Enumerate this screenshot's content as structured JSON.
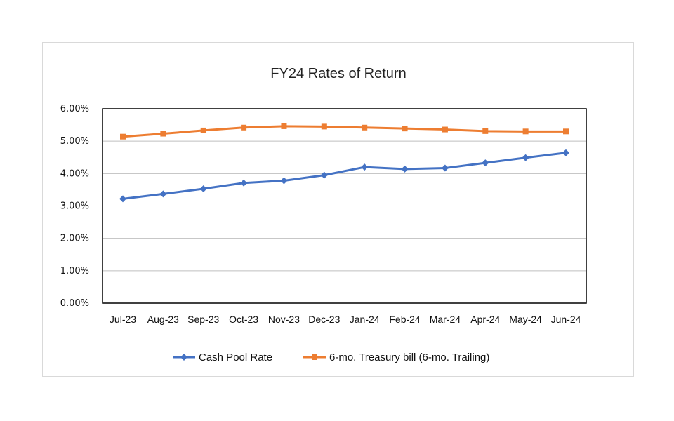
{
  "chart_data": {
    "type": "line",
    "title": "FY24 Rates of Return",
    "categories": [
      "Jul-23",
      "Aug-23",
      "Sep-23",
      "Oct-23",
      "Nov-23",
      "Dec-23",
      "Jan-24",
      "Feb-24",
      "Mar-24",
      "Apr-24",
      "May-24",
      "Jun-24"
    ],
    "series": [
      {
        "name": "Cash Pool Rate",
        "color": "#4472C4",
        "marker": "diamond",
        "values": [
          3.22,
          3.37,
          3.53,
          3.71,
          3.78,
          3.95,
          4.2,
          4.14,
          4.17,
          4.33,
          4.49,
          4.64
        ]
      },
      {
        "name": "6-mo. Treasury bill (6-mo. Trailing)",
        "color": "#ED7D31",
        "marker": "square",
        "values": [
          5.14,
          5.23,
          5.33,
          5.42,
          5.46,
          5.45,
          5.42,
          5.39,
          5.36,
          5.31,
          5.3,
          5.3
        ]
      }
    ],
    "ylim": [
      0,
      6
    ],
    "yticks": [
      "0.00%",
      "1.00%",
      "2.00%",
      "3.00%",
      "4.00%",
      "5.00%",
      "6.00%"
    ],
    "grid": true,
    "legend": "bottom"
  }
}
